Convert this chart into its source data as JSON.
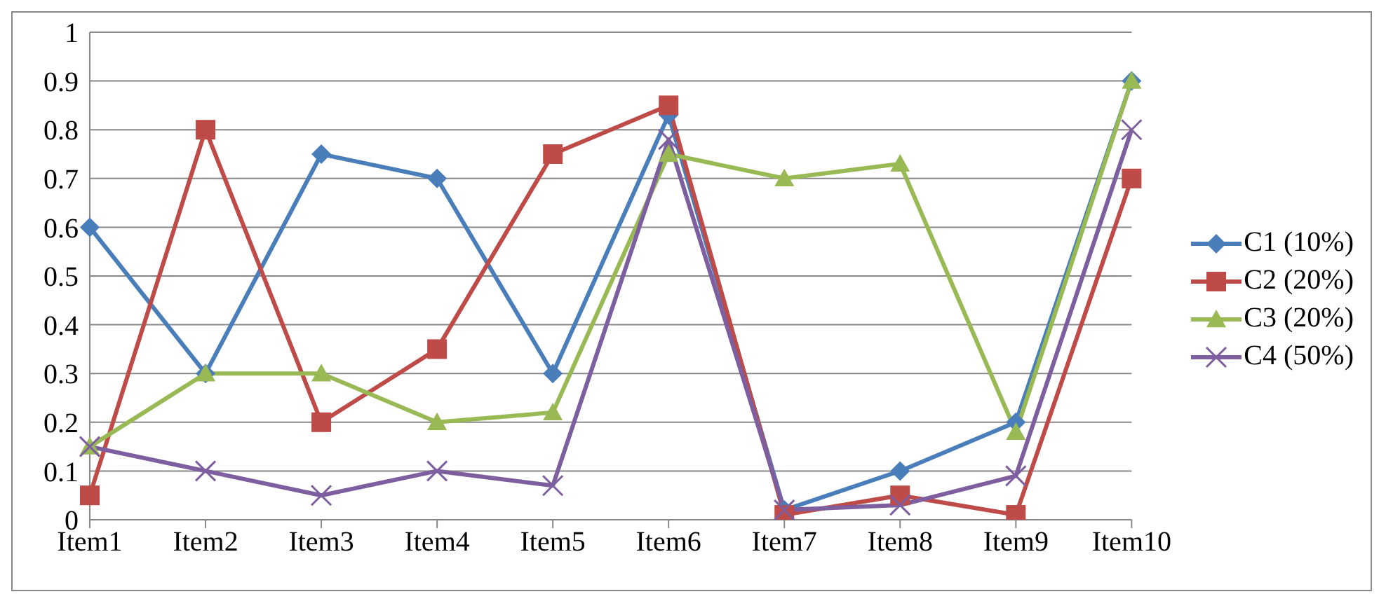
{
  "chart_data": {
    "type": "line",
    "categories": [
      "Item1",
      "Item2",
      "Item3",
      "Item4",
      "Item5",
      "Item6",
      "Item7",
      "Item8",
      "Item9",
      "Item10"
    ],
    "series": [
      {
        "name": "C1 (10%)",
        "color": "#4a7ebb",
        "marker": "diamond",
        "values": [
          0.6,
          0.3,
          0.75,
          0.7,
          0.3,
          0.83,
          0.02,
          0.1,
          0.2,
          0.9
        ]
      },
      {
        "name": "C2 (20%)",
        "color": "#be4b48",
        "marker": "square",
        "values": [
          0.05,
          0.8,
          0.2,
          0.35,
          0.75,
          0.85,
          0.01,
          0.05,
          0.01,
          0.7
        ]
      },
      {
        "name": "C3 (20%)",
        "color": "#98b954",
        "marker": "triangle",
        "values": [
          0.15,
          0.3,
          0.3,
          0.2,
          0.22,
          0.75,
          0.7,
          0.73,
          0.18,
          0.9
        ]
      },
      {
        "name": "C4 (50%)",
        "color": "#7d5fa0",
        "marker": "cross",
        "values": [
          0.15,
          0.1,
          0.05,
          0.1,
          0.07,
          0.78,
          0.02,
          0.03,
          0.09,
          0.8
        ]
      }
    ],
    "ylim": [
      0,
      1
    ],
    "yticks": [
      0,
      0.1,
      0.2,
      0.3,
      0.4,
      0.5,
      0.6,
      0.7,
      0.8,
      0.9,
      1
    ],
    "grid": "y",
    "legend": "right"
  }
}
